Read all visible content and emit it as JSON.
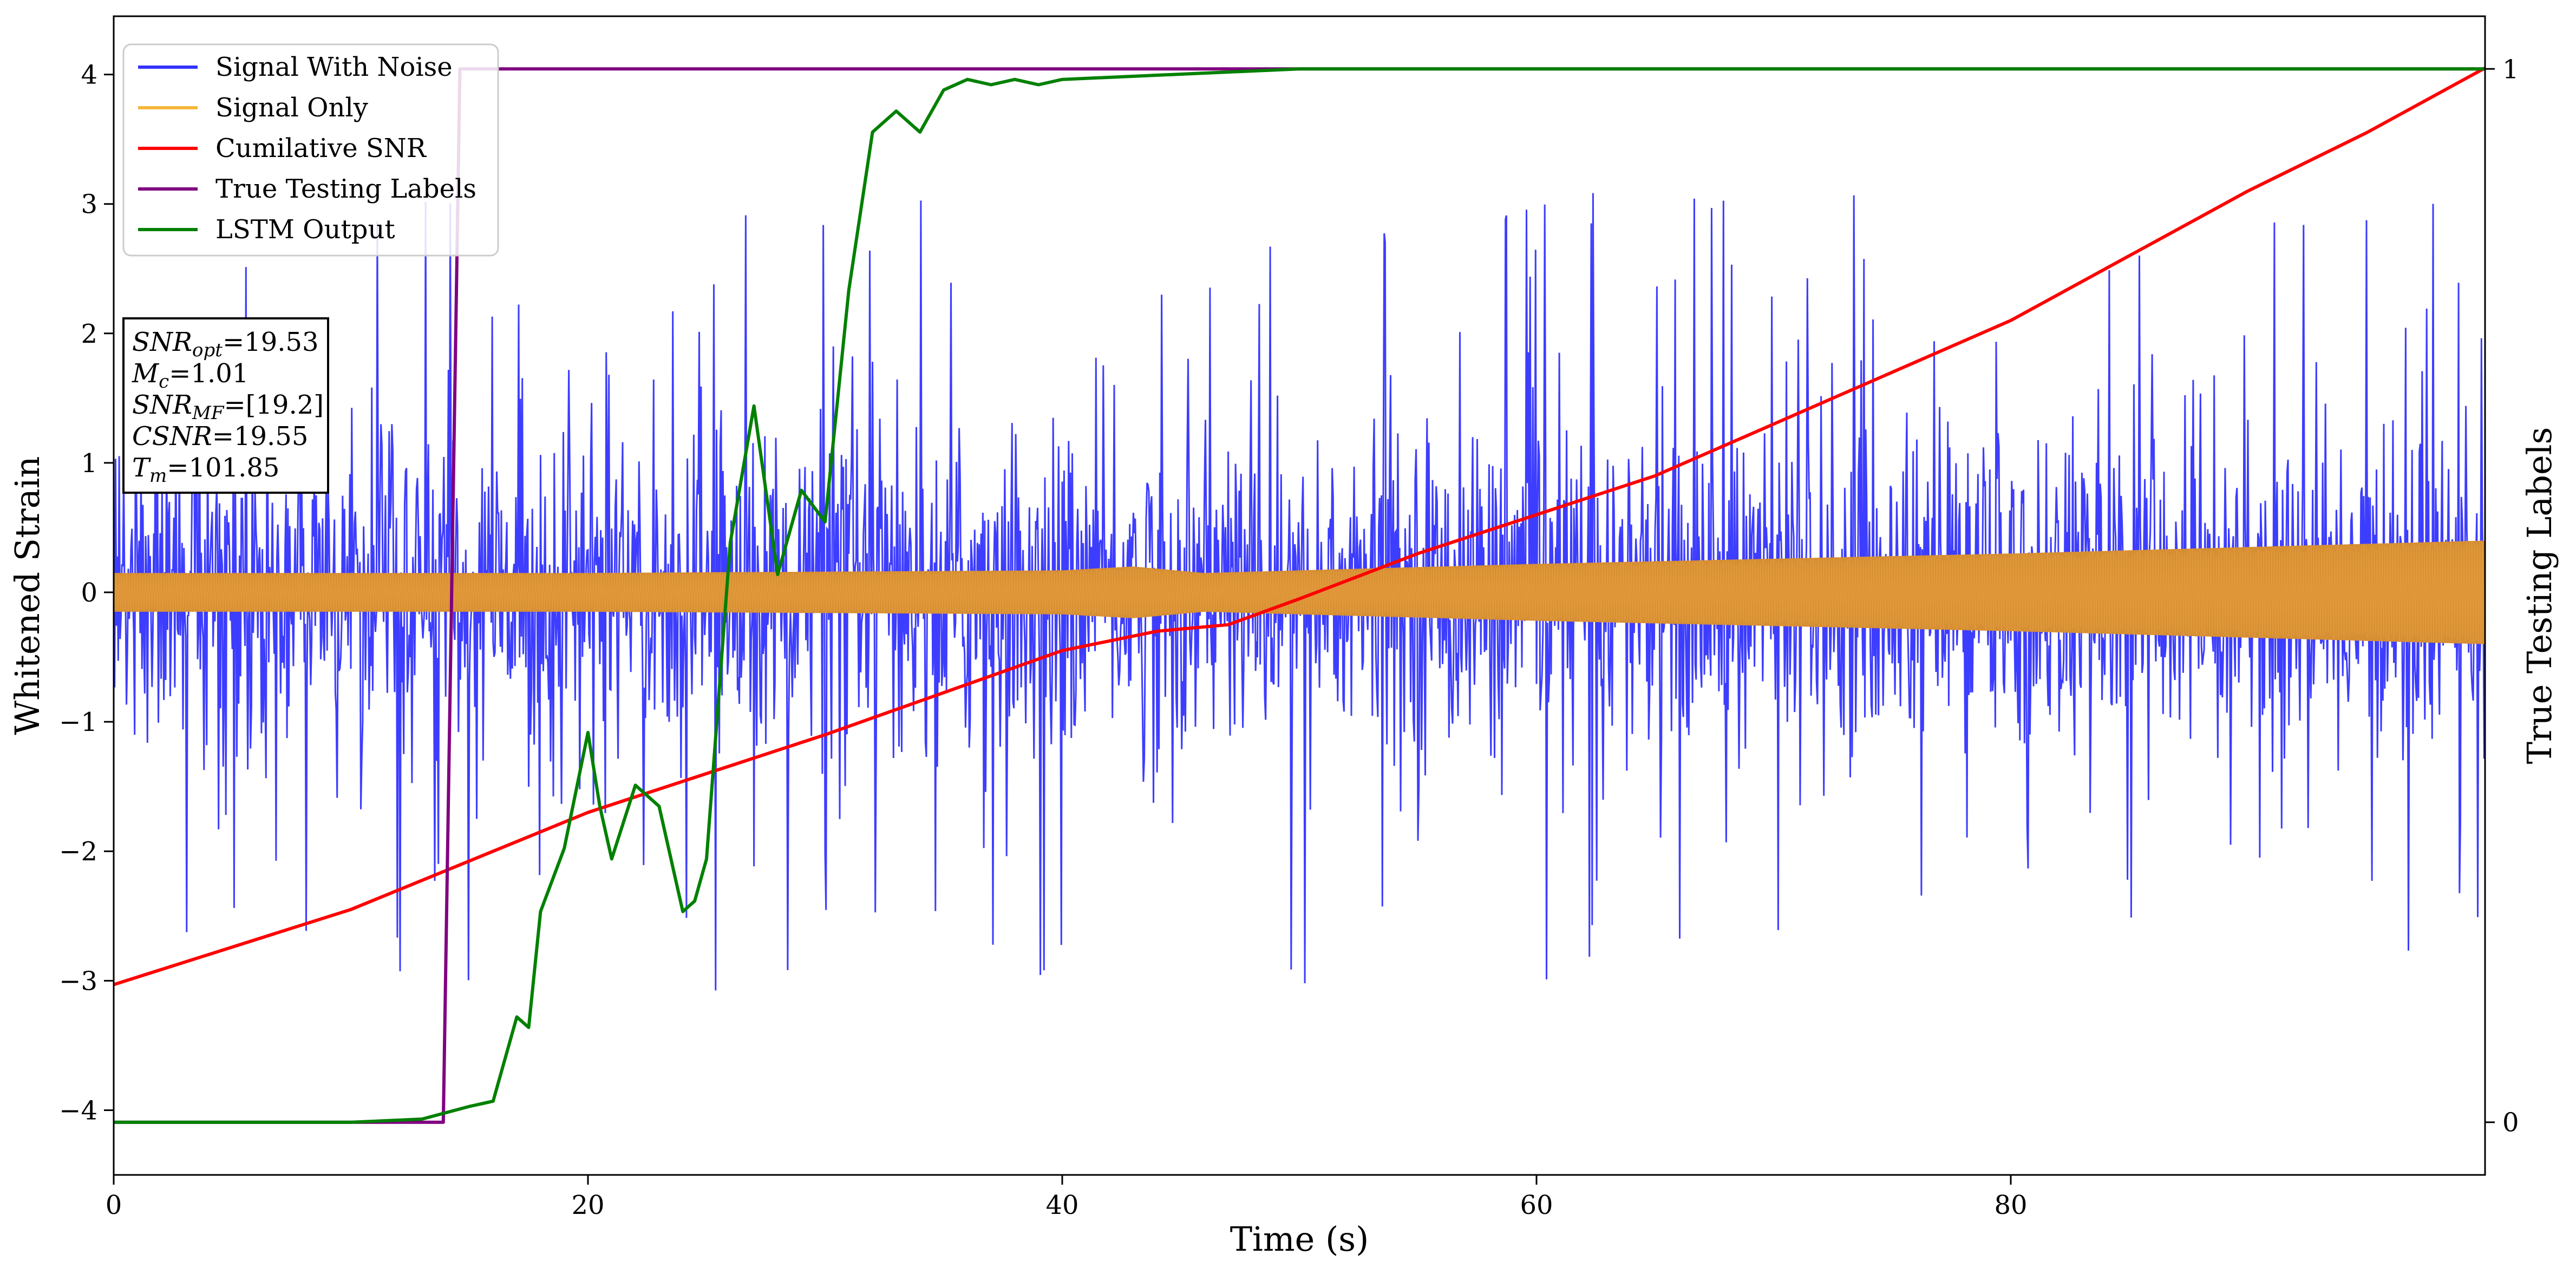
{
  "chart_data": {
    "type": "line",
    "xlabel": "Time (s)",
    "ylabel": "Whitened Strain",
    "y2label": "True Testing Labels",
    "xlim": [
      0,
      100
    ],
    "ylim": [
      -4.5,
      4.45
    ],
    "y2lim": [
      -0.05,
      1.05
    ],
    "xticks": [
      0,
      20,
      40,
      60,
      80
    ],
    "yticks": [
      -4,
      -3,
      -2,
      -1,
      0,
      1,
      2,
      3,
      4
    ],
    "y2ticks": [
      0,
      1
    ],
    "grid": false,
    "legend_position": "top-left",
    "series": [
      {
        "name": "Signal With Noise",
        "color": "#3333ff",
        "axis": "left",
        "noise_band": {
          "typical_abs": 0.75,
          "peak_min": -3.4,
          "peak_max": 4.1
        }
      },
      {
        "name": "Signal Only",
        "color": "#f5b73b",
        "axis": "left",
        "envelope": {
          "x": [
            0,
            20,
            40,
            43,
            46,
            60,
            80,
            100
          ],
          "amp": [
            0.15,
            0.15,
            0.17,
            0.2,
            0.15,
            0.22,
            0.3,
            0.4
          ]
        }
      },
      {
        "name": "Cumilative SNR",
        "color": "#ff0000",
        "axis": "left",
        "x": [
          0,
          10,
          20,
          30,
          40,
          44,
          47,
          50,
          55,
          60,
          65,
          70,
          75,
          80,
          85,
          90,
          95,
          100
        ],
        "y": [
          -3.03,
          -2.45,
          -1.7,
          -1.1,
          -0.45,
          -0.3,
          -0.25,
          -0.05,
          0.3,
          0.6,
          0.9,
          1.3,
          1.7,
          2.1,
          2.6,
          3.1,
          3.55,
          4.05
        ]
      },
      {
        "name": "True Testing Labels",
        "color": "#800080",
        "axis": "right",
        "x": [
          0,
          13.9,
          14.6,
          100
        ],
        "y": [
          0,
          0,
          1,
          1
        ]
      },
      {
        "name": "LSTM Output",
        "color": "#008000",
        "axis": "right",
        "x": [
          0,
          10,
          13,
          15,
          16,
          17,
          17.5,
          18,
          19,
          20,
          20.5,
          21,
          22,
          23,
          24,
          24.5,
          25,
          26,
          27,
          28,
          29,
          30,
          31,
          32,
          33,
          34,
          35,
          36,
          37,
          38,
          39,
          40,
          45,
          50,
          60,
          100
        ],
        "y": [
          0,
          0,
          0.003,
          0.015,
          0.02,
          0.1,
          0.09,
          0.2,
          0.26,
          0.37,
          0.3,
          0.25,
          0.32,
          0.3,
          0.2,
          0.21,
          0.25,
          0.55,
          0.68,
          0.52,
          0.6,
          0.57,
          0.79,
          0.94,
          0.96,
          0.94,
          0.98,
          0.99,
          0.985,
          0.99,
          0.985,
          0.99,
          0.995,
          1.0,
          1.0,
          1.0
        ]
      }
    ],
    "annotation": {
      "lines": [
        {
          "main": "SNR",
          "sub": "opt",
          "rest": "=19.53"
        },
        {
          "main": "M",
          "sub": "c",
          "rest": "=1.01"
        },
        {
          "main": "SNR",
          "sub": "MF",
          "rest": "=[19.2]"
        },
        {
          "main": "CSNR",
          "sub": "",
          "rest": "=19.55"
        },
        {
          "main": "T",
          "sub": "m",
          "rest": "=101.85"
        }
      ]
    }
  }
}
